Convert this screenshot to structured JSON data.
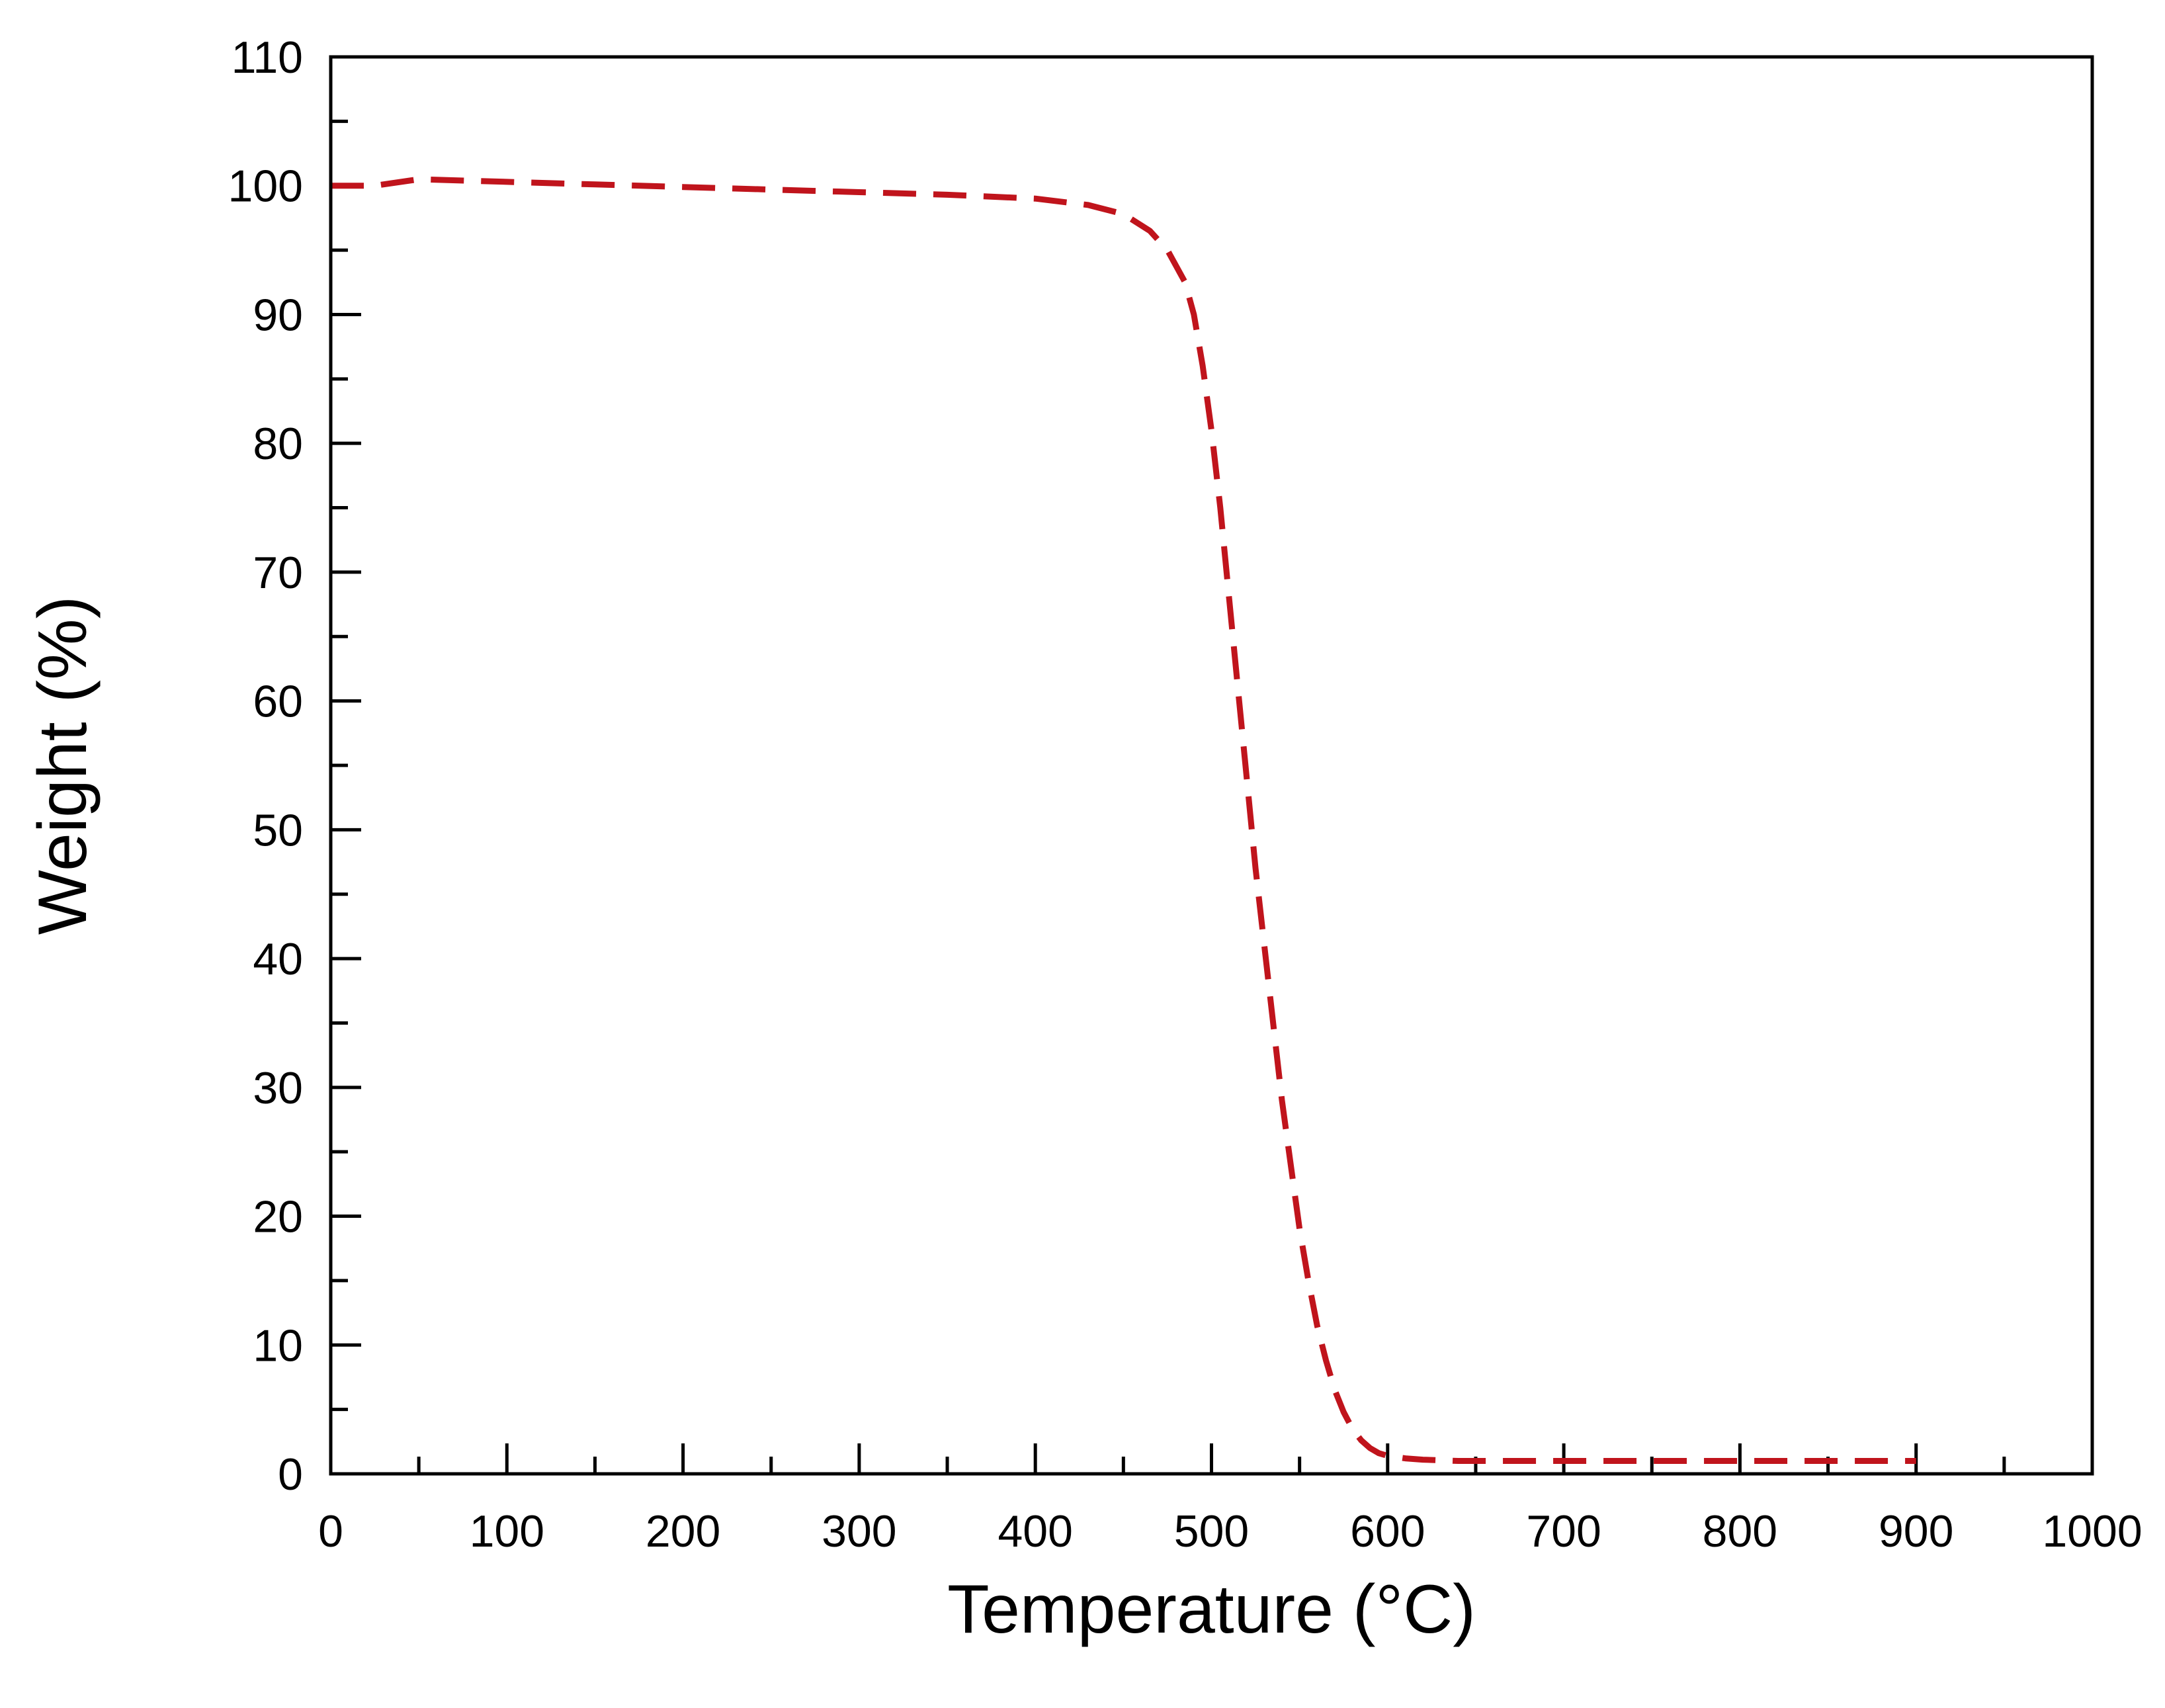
{
  "chart_data": {
    "type": "line",
    "xlabel": "Temperature (°C)",
    "ylabel": "Weight (%)",
    "xlim": [
      0,
      1000
    ],
    "ylim": [
      0,
      110
    ],
    "x_major_ticks": [
      0,
      100,
      200,
      300,
      400,
      500,
      600,
      700,
      800,
      900,
      1000
    ],
    "y_major_ticks": [
      0,
      10,
      20,
      30,
      40,
      50,
      60,
      70,
      80,
      90,
      100,
      110
    ],
    "x_tick_labels": [
      "0",
      "100",
      "200",
      "300",
      "400",
      "500",
      "600",
      "700",
      "800",
      "900",
      "1000"
    ],
    "y_tick_labels": [
      "0",
      "10",
      "20",
      "30",
      "40",
      "50",
      "60",
      "70",
      "80",
      "90",
      "100",
      "110"
    ],
    "x_minor_step": 50,
    "y_minor_step": 5,
    "grid": false,
    "legend": "none",
    "series": [
      {
        "color": "#c0141c",
        "line_style": "dashed",
        "x": [
          0,
          25,
          50,
          100,
          150,
          200,
          250,
          300,
          350,
          400,
          430,
          450,
          465,
          475,
          485,
          490,
          495,
          500,
          505,
          510,
          515,
          520,
          525,
          530,
          535,
          540,
          545,
          550,
          555,
          560,
          565,
          570,
          575,
          580,
          585,
          590,
          595,
          600,
          610,
          620,
          640,
          660,
          700,
          750,
          800,
          850,
          900
        ],
        "y": [
          100,
          100,
          100.5,
          100.3,
          100.1,
          99.9,
          99.7,
          99.5,
          99.3,
          99,
          98.5,
          97.8,
          96.5,
          95,
          92.5,
          90,
          86,
          81,
          75,
          68,
          61,
          54,
          47,
          41,
          35,
          29,
          24,
          19,
          15,
          11.5,
          8.8,
          6.5,
          4.8,
          3.5,
          2.6,
          2,
          1.6,
          1.4,
          1.2,
          1.1,
          1.0,
          1.0,
          1.0,
          1.0,
          1.0,
          1.0,
          1.0
        ]
      }
    ]
  }
}
